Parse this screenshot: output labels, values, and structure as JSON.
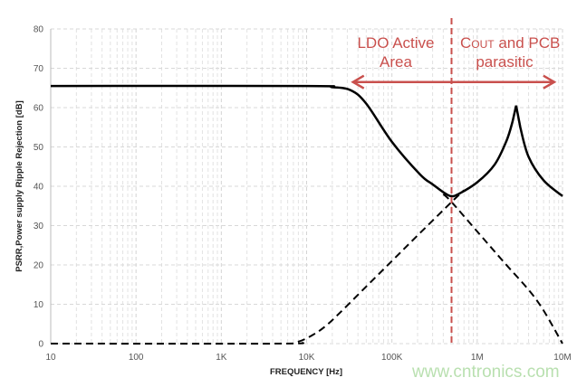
{
  "chart_data": {
    "type": "line",
    "title": "",
    "xlabel": "FREQUENCY [Hz]",
    "ylabel": "PSRR,Power supply Ripple Rejection [dB]",
    "xscale": "log",
    "xlim": [
      10,
      10000000
    ],
    "ylim": [
      0,
      80
    ],
    "grid": true,
    "x_ticks": [
      {
        "value": 10,
        "label": "10"
      },
      {
        "value": 100,
        "label": "100"
      },
      {
        "value": 1000,
        "label": "1K"
      },
      {
        "value": 10000,
        "label": "10K"
      },
      {
        "value": 100000,
        "label": "100K"
      },
      {
        "value": 1000000,
        "label": "1M"
      },
      {
        "value": 10000000,
        "label": "10M"
      }
    ],
    "y_ticks": [
      0,
      10,
      20,
      30,
      40,
      50,
      60,
      70,
      80
    ],
    "series": [
      {
        "style": "solid",
        "color": "#000000",
        "x": [
          10,
          10000,
          20000,
          33000,
          50000,
          100000,
          214000,
          300000,
          400000,
          490000,
          600000,
          1000000,
          1600000,
          2200000,
          2600000,
          2860000,
          3200000,
          4000000,
          6000000,
          10000000
        ],
        "y": [
          65.5,
          65.5,
          65.2,
          64.4,
          61,
          51.3,
          43,
          40.5,
          38.5,
          37.5,
          38,
          41,
          45.5,
          51.5,
          56.5,
          60.5,
          55,
          47.5,
          41.5,
          37.5
        ]
      },
      {
        "style": "dashed",
        "color": "#000000",
        "x": [
          10,
          5000,
          8000,
          12000,
          17000,
          25000,
          50000,
          100000,
          200000,
          500000,
          700000
        ],
        "y": [
          0,
          0,
          0.5,
          2.3,
          4.6,
          8,
          14.5,
          21,
          27.5,
          36,
          39
        ]
      },
      {
        "style": "dashed",
        "color": "#000000",
        "x": [
          400000,
          500000,
          1000000,
          2000000,
          5000000,
          10000000
        ],
        "y": [
          38,
          36,
          28.5,
          21,
          11,
          0
        ]
      }
    ],
    "annotations": {
      "divider_frequency": 500000,
      "left_label_line1": "LDO Active",
      "left_label_line2": "Area",
      "right_label_c": "C",
      "right_label_sub": "OUT",
      "right_label_rest": " and PCB",
      "right_label_line2": "parasitic",
      "arrow_from": 35000,
      "arrow_to": 8000000,
      "arrow_value": 66.5,
      "color": "#c9504d"
    },
    "watermark": "www.cntronics.com"
  }
}
